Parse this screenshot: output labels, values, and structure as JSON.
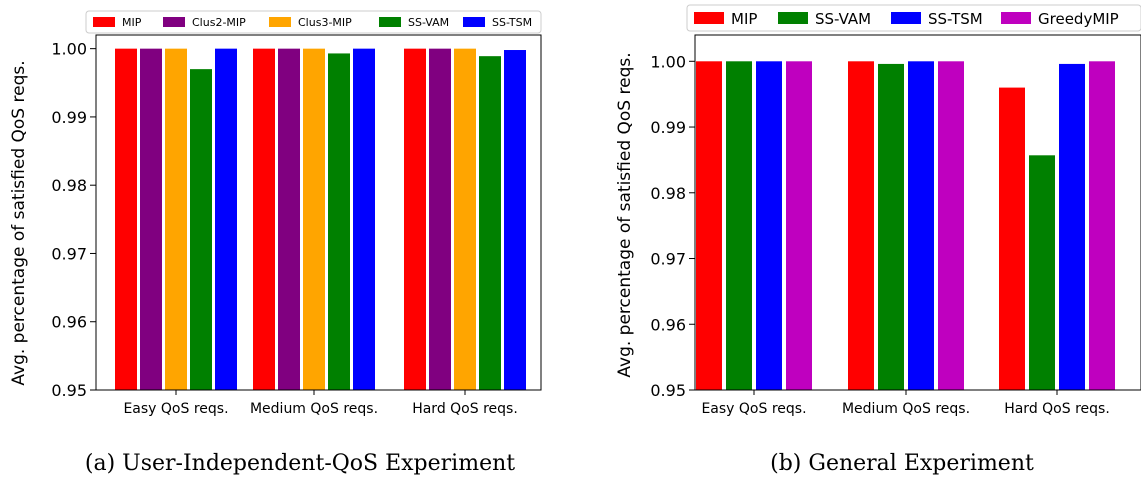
{
  "colors": {
    "MIP": "#ff0000",
    "Clus2-MIP": "#800080",
    "Clus3-MIP": "#ffa500",
    "SS-VAM": "#008000",
    "SS-TSM": "#0000ff",
    "GreedyMIP": "#bf00bf"
  },
  "chart_data": [
    {
      "type": "bar",
      "caption": "(a) User-Independent-QoS Experiment",
      "ylabel": "Avg. percentage of satisfied QoS reqs.",
      "xlabel": "",
      "ylim": [
        0.95,
        1.002
      ],
      "yticks": [
        "0.95",
        "0.96",
        "0.97",
        "0.98",
        "0.99",
        "1.00"
      ],
      "categories": [
        "Easy QoS reqs.",
        "Medium QoS reqs.",
        "Hard QoS reqs."
      ],
      "legend_position": "top",
      "series": [
        {
          "name": "MIP",
          "values": [
            1.0,
            1.0,
            1.0
          ]
        },
        {
          "name": "Clus2-MIP",
          "values": [
            1.0,
            1.0,
            1.0
          ]
        },
        {
          "name": "Clus3-MIP",
          "values": [
            1.0,
            1.0,
            1.0
          ]
        },
        {
          "name": "SS-VAM",
          "values": [
            0.997,
            0.9993,
            0.9989
          ]
        },
        {
          "name": "SS-TSM",
          "values": [
            1.0,
            1.0,
            0.9998
          ]
        }
      ]
    },
    {
      "type": "bar",
      "caption": "(b) General Experiment",
      "ylabel": "Avg. percentage of satisfied QoS reqs.",
      "xlabel": "",
      "ylim": [
        0.95,
        1.004
      ],
      "yticks": [
        "0.95",
        "0.96",
        "0.97",
        "0.98",
        "0.99",
        "1.00"
      ],
      "categories": [
        "Easy QoS reqs.",
        "Medium QoS reqs.",
        "Hard QoS reqs."
      ],
      "legend_position": "top",
      "series": [
        {
          "name": "MIP",
          "values": [
            1.0,
            1.0,
            0.996
          ]
        },
        {
          "name": "SS-VAM",
          "values": [
            1.0,
            0.9996,
            0.9857
          ]
        },
        {
          "name": "SS-TSM",
          "values": [
            1.0,
            1.0,
            0.9996
          ]
        },
        {
          "name": "GreedyMIP",
          "values": [
            1.0,
            1.0,
            1.0
          ]
        }
      ]
    }
  ]
}
